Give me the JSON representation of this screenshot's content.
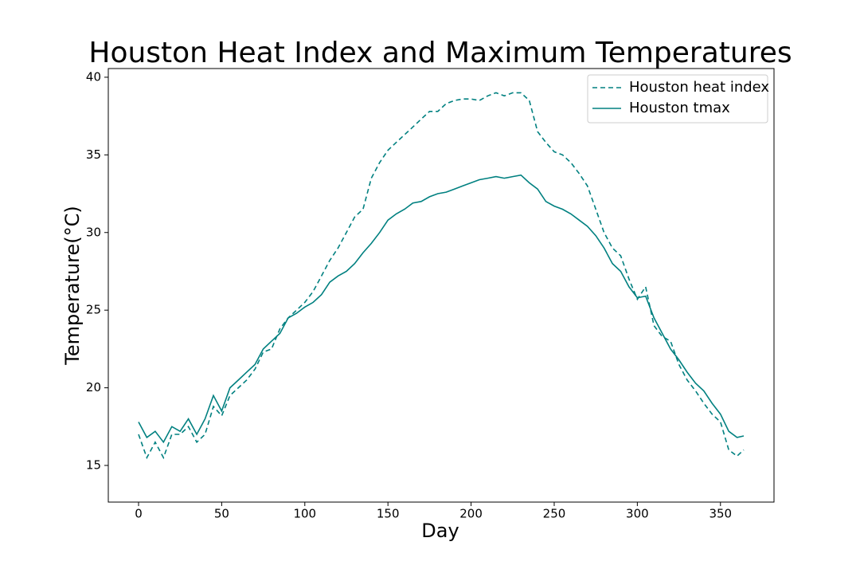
{
  "chart_data": {
    "type": "line",
    "title": "Houston Heat Index and Maximum Temperatures",
    "x_label": "Day",
    "y_label": "Temperature(°C)",
    "x": [
      0,
      5,
      10,
      15,
      20,
      25,
      30,
      35,
      40,
      45,
      50,
      55,
      60,
      65,
      70,
      75,
      80,
      85,
      90,
      95,
      100,
      105,
      110,
      115,
      120,
      125,
      130,
      135,
      140,
      145,
      150,
      155,
      160,
      165,
      170,
      175,
      180,
      185,
      190,
      195,
      200,
      205,
      210,
      215,
      220,
      225,
      230,
      235,
      240,
      245,
      250,
      255,
      260,
      265,
      270,
      275,
      280,
      285,
      290,
      295,
      300,
      305,
      310,
      315,
      320,
      325,
      330,
      335,
      340,
      345,
      350,
      355,
      360,
      364
    ],
    "series": [
      {
        "name": "Houston heat index",
        "color": "#008080",
        "dash": "6,4",
        "values": [
          17,
          15.5,
          16.5,
          15.5,
          17,
          17,
          17.5,
          16.5,
          17,
          18.8,
          18.2,
          19.5,
          20,
          20.5,
          21.2,
          22.3,
          22.5,
          23.8,
          24.5,
          25,
          25.5,
          26.2,
          27.2,
          28.2,
          29,
          30,
          31,
          31.5,
          33.5,
          34.5,
          35.3,
          35.8,
          36.3,
          36.8,
          37.3,
          37.8,
          37.8,
          38.3,
          38.5,
          38.6,
          38.6,
          38.5,
          38.8,
          39,
          38.8,
          39,
          39,
          38.5,
          36.5,
          35.8,
          35.2,
          35,
          34.5,
          33.8,
          33,
          31.5,
          30,
          29,
          28.5,
          27,
          25.7,
          26.5,
          24,
          23.3,
          23,
          21.5,
          20.5,
          19.8,
          19,
          18.3,
          17.8,
          16,
          15.6,
          16
        ]
      },
      {
        "name": "Houston tmax",
        "color": "#008080",
        "values": [
          17.8,
          16.8,
          17.2,
          16.5,
          17.5,
          17.2,
          18,
          17,
          18,
          19.5,
          18.5,
          20,
          20.5,
          21,
          21.5,
          22.5,
          23,
          23.5,
          24.5,
          24.8,
          25.2,
          25.5,
          26,
          26.8,
          27.2,
          27.5,
          28,
          28.7,
          29.3,
          30,
          30.8,
          31.2,
          31.5,
          31.9,
          32,
          32.3,
          32.5,
          32.6,
          32.8,
          33,
          33.2,
          33.4,
          33.5,
          33.6,
          33.5,
          33.6,
          33.7,
          33.2,
          32.8,
          32,
          31.7,
          31.5,
          31.2,
          30.8,
          30.4,
          29.8,
          29,
          28,
          27.5,
          26.5,
          25.8,
          25.9,
          24.5,
          23.5,
          22.5,
          21.8,
          21,
          20.3,
          19.8,
          19,
          18.3,
          17.2,
          16.8,
          16.9
        ]
      }
    ],
    "xlim": [
      -18.2,
      382.2
    ],
    "xticks": [
      0,
      50,
      100,
      150,
      200,
      250,
      300,
      350
    ],
    "ylim": [
      12.64,
      40.56
    ],
    "yticks": [
      15,
      20,
      25,
      30,
      35,
      40
    ],
    "legend": "upper right"
  }
}
